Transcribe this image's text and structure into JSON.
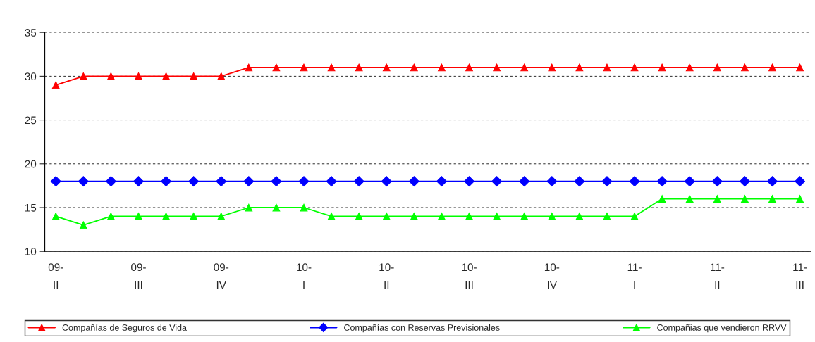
{
  "chart_data": {
    "type": "line",
    "categories": [
      "09-\nII",
      null,
      null,
      "09-\nIII",
      null,
      null,
      "09-\nIV",
      null,
      null,
      "10-\nI",
      null,
      null,
      "10-\nII",
      null,
      null,
      "10-\nIII",
      null,
      null,
      "10-\nIV",
      null,
      null,
      "11-\nI",
      null,
      null,
      "11-\nII",
      null,
      null,
      "11-\nIII"
    ],
    "series": [
      {
        "name": "Compañías de Seguros de Vida",
        "color": "#ff0000",
        "marker": "triangle",
        "values": [
          29,
          30,
          30,
          30,
          30,
          30,
          30,
          31,
          31,
          31,
          31,
          31,
          31,
          31,
          31,
          31,
          31,
          31,
          31,
          31,
          31,
          31,
          31,
          31,
          31,
          31,
          31,
          31
        ]
      },
      {
        "name": "Compañías con Reservas Previsionales",
        "color": "#0000ff",
        "marker": "diamond",
        "values": [
          18,
          18,
          18,
          18,
          18,
          18,
          18,
          18,
          18,
          18,
          18,
          18,
          18,
          18,
          18,
          18,
          18,
          18,
          18,
          18,
          18,
          18,
          18,
          18,
          18,
          18,
          18,
          18
        ]
      },
      {
        "name": "Compañias que vendieron RRVV",
        "color": "#00ff00",
        "marker": "triangle",
        "values": [
          14,
          13,
          14,
          14,
          14,
          14,
          14,
          15,
          15,
          15,
          14,
          14,
          14,
          14,
          14,
          14,
          14,
          14,
          14,
          14,
          14,
          14,
          16,
          16,
          16,
          16,
          16,
          16
        ]
      }
    ],
    "ylim": [
      10,
      35
    ],
    "yticks": [
      10,
      15,
      20,
      25,
      30,
      35
    ],
    "grid": "y",
    "legend": "bottom"
  }
}
